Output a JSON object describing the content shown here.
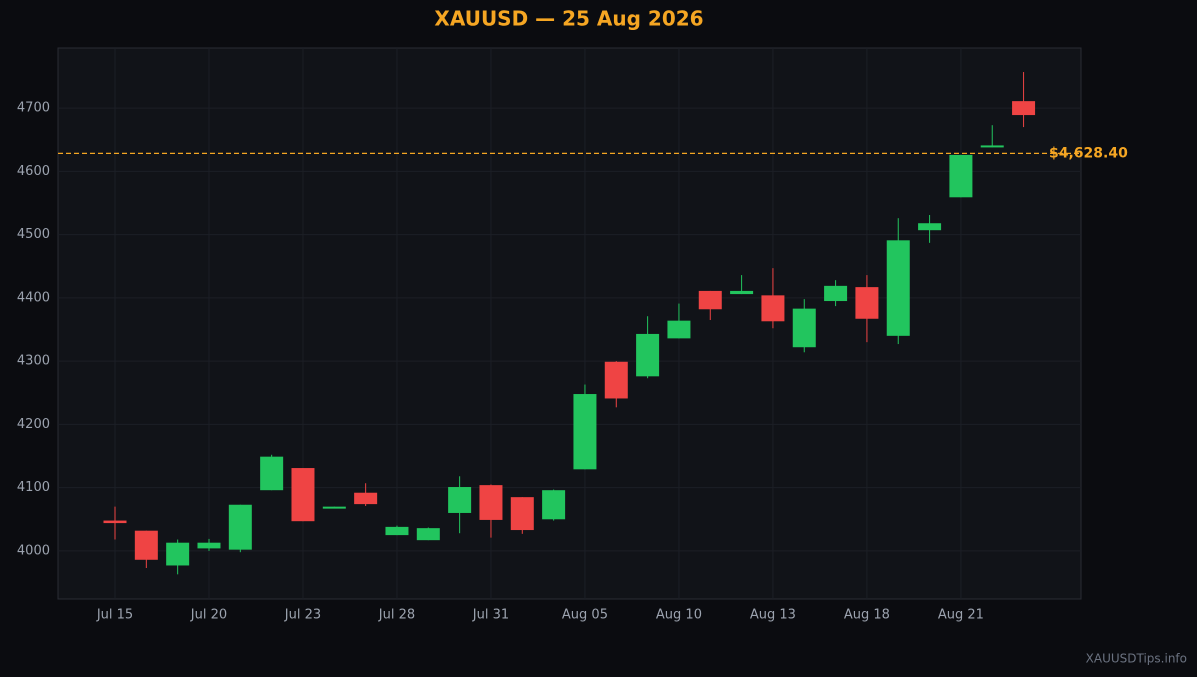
{
  "chart_data": {
    "type": "candlestick",
    "title": "XAUUSD — 25 Aug 2026",
    "categories": [
      "Jul 15",
      null,
      null,
      "Jul 20",
      null,
      null,
      "Jul 23",
      null,
      null,
      "Jul 28",
      null,
      null,
      "Jul 31",
      null,
      null,
      "Aug 05",
      null,
      null,
      "Aug 10",
      null,
      null,
      "Aug 13",
      null,
      null,
      "Aug 18",
      null,
      null,
      "Aug 21",
      null,
      null
    ],
    "open": [
      4048,
      4032,
      3977,
      4004,
      4002,
      4096,
      4131,
      4068,
      4092,
      4025,
      4017,
      4060,
      4104,
      4085,
      4050,
      4129,
      4299,
      4276,
      4336,
      4411,
      4406,
      4404,
      4322,
      4395,
      4417,
      4340,
      4507,
      4559,
      4638,
      4711
    ],
    "high": [
      4070,
      4032,
      4018,
      4019,
      4073,
      4152,
      4131,
      4070,
      4107,
      4040,
      4037,
      4118,
      4105,
      4085,
      4097,
      4263,
      4300,
      4371,
      4391,
      4411,
      4436,
      4447,
      4398,
      4428,
      4436,
      4526,
      4531,
      4626,
      4673,
      4757
    ],
    "low": [
      4018,
      3973,
      3963,
      4000,
      3998,
      4096,
      4047,
      4068,
      4071,
      4025,
      4017,
      4028,
      4021,
      4027,
      4048,
      4129,
      4227,
      4273,
      4336,
      4365,
      4406,
      4352,
      4314,
      4387,
      4330,
      4327,
      4487,
      4559,
      4638,
      4670
    ],
    "close": [
      4044,
      3986,
      4013,
      4013,
      4073,
      4149,
      4047,
      4070,
      4074,
      4038,
      4036,
      4101,
      4049,
      4033,
      4096,
      4248,
      4241,
      4343,
      4364,
      4382,
      4411,
      4363,
      4383,
      4419,
      4367,
      4491,
      4518,
      4626,
      4641,
      4689
    ],
    "up_color": "#22c55e",
    "down_color": "#ef4444",
    "ylim": [
      3924,
      4795
    ],
    "yticks": [
      4000,
      4100,
      4200,
      4300,
      4400,
      4500,
      4600,
      4700
    ],
    "grid": true,
    "reference_line": {
      "value": 4628.4,
      "label": "$4,628.40",
      "color": "#f5a623"
    },
    "watermark": "XAUUSDTips.info"
  }
}
